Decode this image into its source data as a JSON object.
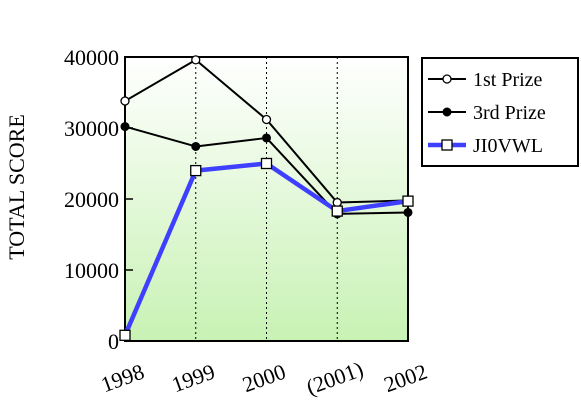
{
  "chart_data": {
    "type": "line",
    "title": "",
    "xlabel": "",
    "ylabel": "TOTAL SCORE",
    "categories": [
      "1998",
      "1999",
      "2000",
      "(2001)",
      "2002"
    ],
    "ylim": [
      0,
      40000
    ],
    "yticks": [
      "0",
      "10000",
      "20000",
      "30000",
      "40000"
    ],
    "grid": "vertical dotted",
    "legend_position": "right",
    "plot_background": "gradient white-to-lightgreen",
    "series": [
      {
        "name": "1st Prize",
        "values": [
          33800,
          39600,
          31200,
          19500,
          19800
        ],
        "color": "#000000",
        "marker": "open-circle"
      },
      {
        "name": "3rd Prize",
        "values": [
          30200,
          27400,
          28600,
          17900,
          18100
        ],
        "color": "#000000",
        "marker": "filled-circle"
      },
      {
        "name": "JI0VWL",
        "values": [
          800,
          24000,
          25000,
          18300,
          19700
        ],
        "color": "#3f3fff",
        "marker": "open-square"
      }
    ]
  }
}
